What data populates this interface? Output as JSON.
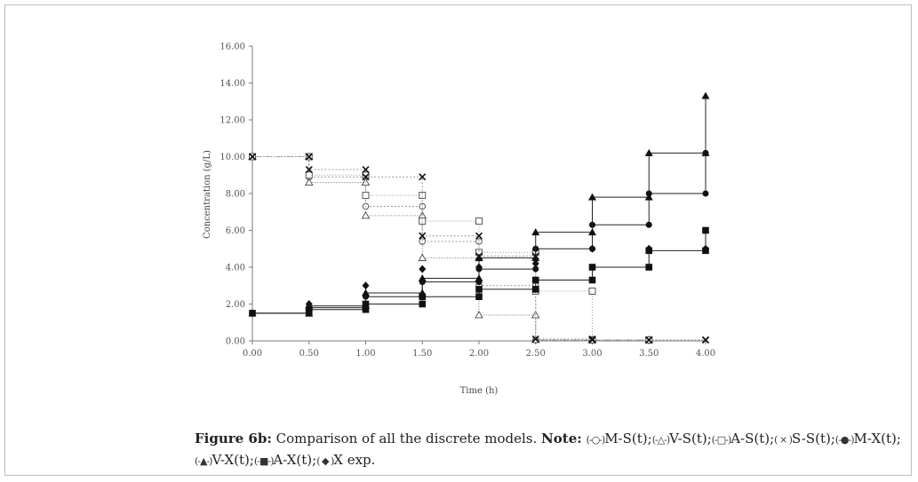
{
  "chart_data": {
    "type": "line",
    "step": true,
    "title": "",
    "xlabel": "Time (h)",
    "ylabel": "Concentration (g/L)",
    "xlim": [
      0,
      4
    ],
    "ylim": [
      0,
      16
    ],
    "xticks": [
      "0.00",
      "0.50",
      "1.00",
      "1.50",
      "2.00",
      "2.50",
      "3.00",
      "3.50",
      "4.00"
    ],
    "yticks": [
      "0.00",
      "2.00",
      "4.00",
      "6.00",
      "8.00",
      "10.00",
      "12.00",
      "14.00",
      "16.00"
    ],
    "grid": false,
    "series": [
      {
        "name": "M-S(t)",
        "marker": "circle-open",
        "x": [
          0,
          0.5,
          1.0,
          1.5,
          2.0,
          2.5,
          3.0,
          3.5
        ],
        "y": [
          10.0,
          8.9,
          7.3,
          5.4,
          3.0,
          0.05,
          0.05,
          0.05
        ]
      },
      {
        "name": "V-S(t)",
        "marker": "triangle-open",
        "x": [
          0,
          0.5,
          1.0,
          1.5,
          2.0,
          2.5,
          3.0,
          3.5
        ],
        "y": [
          10.0,
          8.6,
          6.8,
          4.5,
          1.4,
          0.05,
          0.05,
          0.05
        ]
      },
      {
        "name": "A-S(t)",
        "marker": "square-open",
        "x": [
          0,
          0.5,
          1.0,
          1.5,
          2.0,
          2.5,
          3.0,
          3.5
        ],
        "y": [
          10.0,
          9.0,
          7.9,
          6.5,
          4.8,
          2.7,
          0.05,
          0.05
        ]
      },
      {
        "name": "S-S(t)",
        "marker": "cross",
        "x": [
          0,
          0.5,
          1.0,
          1.5,
          2.0,
          2.5,
          3.0,
          3.5,
          4.0
        ],
        "y": [
          10.0,
          9.3,
          8.9,
          5.7,
          4.6,
          0.1,
          0.05,
          0.05,
          0.05
        ]
      },
      {
        "name": "M-X(t)",
        "marker": "circle-filled",
        "x": [
          0,
          0.5,
          1.0,
          1.5,
          2.0,
          2.5,
          3.0,
          3.5,
          4.0
        ],
        "y": [
          1.5,
          1.8,
          2.4,
          3.2,
          3.9,
          5.0,
          6.3,
          8.0,
          10.2
        ]
      },
      {
        "name": "V-X(t)",
        "marker": "triangle-filled",
        "x": [
          0,
          0.5,
          1.0,
          1.5,
          2.0,
          2.5,
          3.0,
          3.5,
          4.0
        ],
        "y": [
          1.5,
          1.9,
          2.6,
          3.4,
          4.5,
          5.9,
          7.8,
          10.2,
          13.3
        ]
      },
      {
        "name": "A-X(t)",
        "marker": "square-filled",
        "x": [
          0,
          0.5,
          1.0,
          1.5,
          2.0,
          2.5,
          3.0,
          3.5,
          4.0
        ],
        "y": [
          1.5,
          1.7,
          2.0,
          2.4,
          2.8,
          3.3,
          4.0,
          4.9,
          6.0
        ]
      },
      {
        "name": "X exp",
        "marker": "diamond-filled",
        "x": [
          0,
          0.5,
          1.0,
          1.5,
          2.0,
          2.5,
          3.0,
          3.5,
          4.0
        ],
        "y": [
          1.5,
          2.0,
          3.0,
          3.9,
          4.0,
          4.2,
          5.0,
          5.0,
          5.0
        ]
      }
    ]
  },
  "caption": {
    "label": "Figure 6b:",
    "text": "Comparison of all the discrete models.",
    "note_label": "Note:",
    "legend": [
      {
        "marker": "circle-open",
        "text": "M-S(t);"
      },
      {
        "marker": "triangle-open",
        "text": "V-S(t);"
      },
      {
        "marker": "square-open",
        "text": "A-S(t);"
      },
      {
        "marker": "cross",
        "text": "S-S(t);"
      },
      {
        "marker": "circle-filled",
        "text": "M-X(t);"
      },
      {
        "marker": "triangle-filled",
        "text": "V-X(t);"
      },
      {
        "marker": "square-filled",
        "text": "A-X(t);"
      },
      {
        "marker": "diamond-filled",
        "text": "X exp."
      }
    ]
  }
}
